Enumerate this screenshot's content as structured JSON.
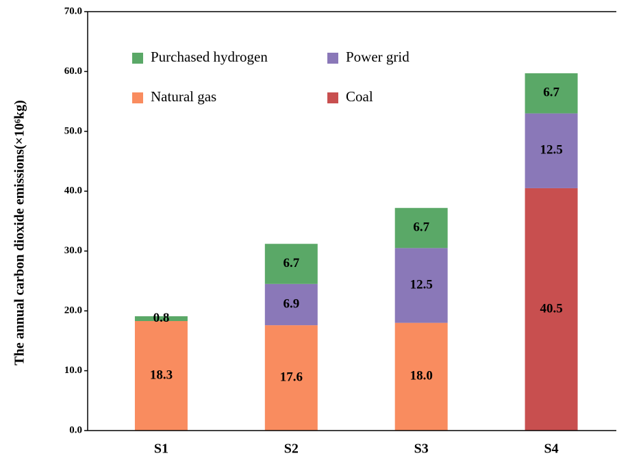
{
  "chart_data": {
    "type": "stacked_bar",
    "y_label": "The annual carbon dioxide emissions(×10⁶kg)",
    "categories": [
      "S1",
      "S2",
      "S3",
      "S4"
    ],
    "series": [
      {
        "name": "Purchased hydrogen",
        "color": "#5aa867",
        "values": [
          0.8,
          6.7,
          6.7,
          6.7
        ],
        "value_labels": [
          "0.8",
          "6.7",
          "6.7",
          "6.7"
        ]
      },
      {
        "name": "Power grid",
        "color": "#8a78b8",
        "values": [
          null,
          6.9,
          12.5,
          12.5
        ],
        "value_labels": [
          null,
          "6.9",
          "12.5",
          "12.5"
        ]
      },
      {
        "name": "Natural gas",
        "color": "#f98c5f",
        "values": [
          18.3,
          17.6,
          18.0,
          null
        ],
        "value_labels": [
          "18.3",
          "17.6",
          "18.0",
          null
        ]
      },
      {
        "name": "Coal",
        "color": "#c84f4f",
        "values": [
          null,
          null,
          null,
          40.5
        ],
        "value_labels": [
          null,
          null,
          null,
          "40.5"
        ]
      }
    ],
    "ylim": [
      0,
      70
    ],
    "yticks": [
      {
        "value": 0,
        "label": "0.0"
      },
      {
        "value": 10,
        "label": "10.0"
      },
      {
        "value": 20,
        "label": "20.0"
      },
      {
        "value": 30,
        "label": "30.0"
      },
      {
        "value": 40,
        "label": "40.0"
      },
      {
        "value": 50,
        "label": "50.0"
      },
      {
        "value": 60,
        "label": "60.0"
      },
      {
        "value": 70,
        "label": "70.0"
      }
    ],
    "legend": "top-left",
    "grid": false
  }
}
